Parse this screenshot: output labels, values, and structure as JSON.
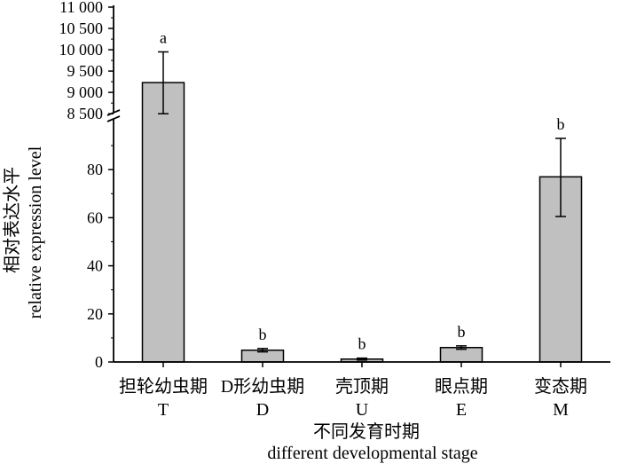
{
  "chart_data": {
    "type": "bar",
    "title": "",
    "xlabel_zh": "不同发育时期",
    "xlabel_en": "different developmental stage",
    "ylabel_zh": "相对表达水平",
    "ylabel_en": "relative expression level",
    "categories": [
      {
        "zh": "担轮幼虫期",
        "code": "T"
      },
      {
        "zh": "D形幼虫期",
        "code": "D"
      },
      {
        "zh": "壳顶期",
        "code": "U"
      },
      {
        "zh": "眼点期",
        "code": "E"
      },
      {
        "zh": "变态期",
        "code": "M"
      }
    ],
    "values": [
      9230,
      4.9,
      1.2,
      6.0,
      77
    ],
    "error_low": [
      8500,
      4.2,
      0.8,
      5.3,
      60.5
    ],
    "error_high": [
      9950,
      5.6,
      1.6,
      6.7,
      93
    ],
    "significance": [
      "a",
      "b",
      "b",
      "b",
      "b"
    ],
    "axis_break": true,
    "ylim_lower": [
      0,
      100
    ],
    "ylim_upper": [
      8400,
      11000
    ],
    "yticks_lower": [
      "0",
      "20",
      "40",
      "60",
      "80"
    ],
    "yticks_upper": [
      "8 500",
      "9 000",
      "9 500",
      "10 000",
      "10 500",
      "11 000"
    ],
    "bar_color": "#c0c0c0",
    "grid": false
  }
}
